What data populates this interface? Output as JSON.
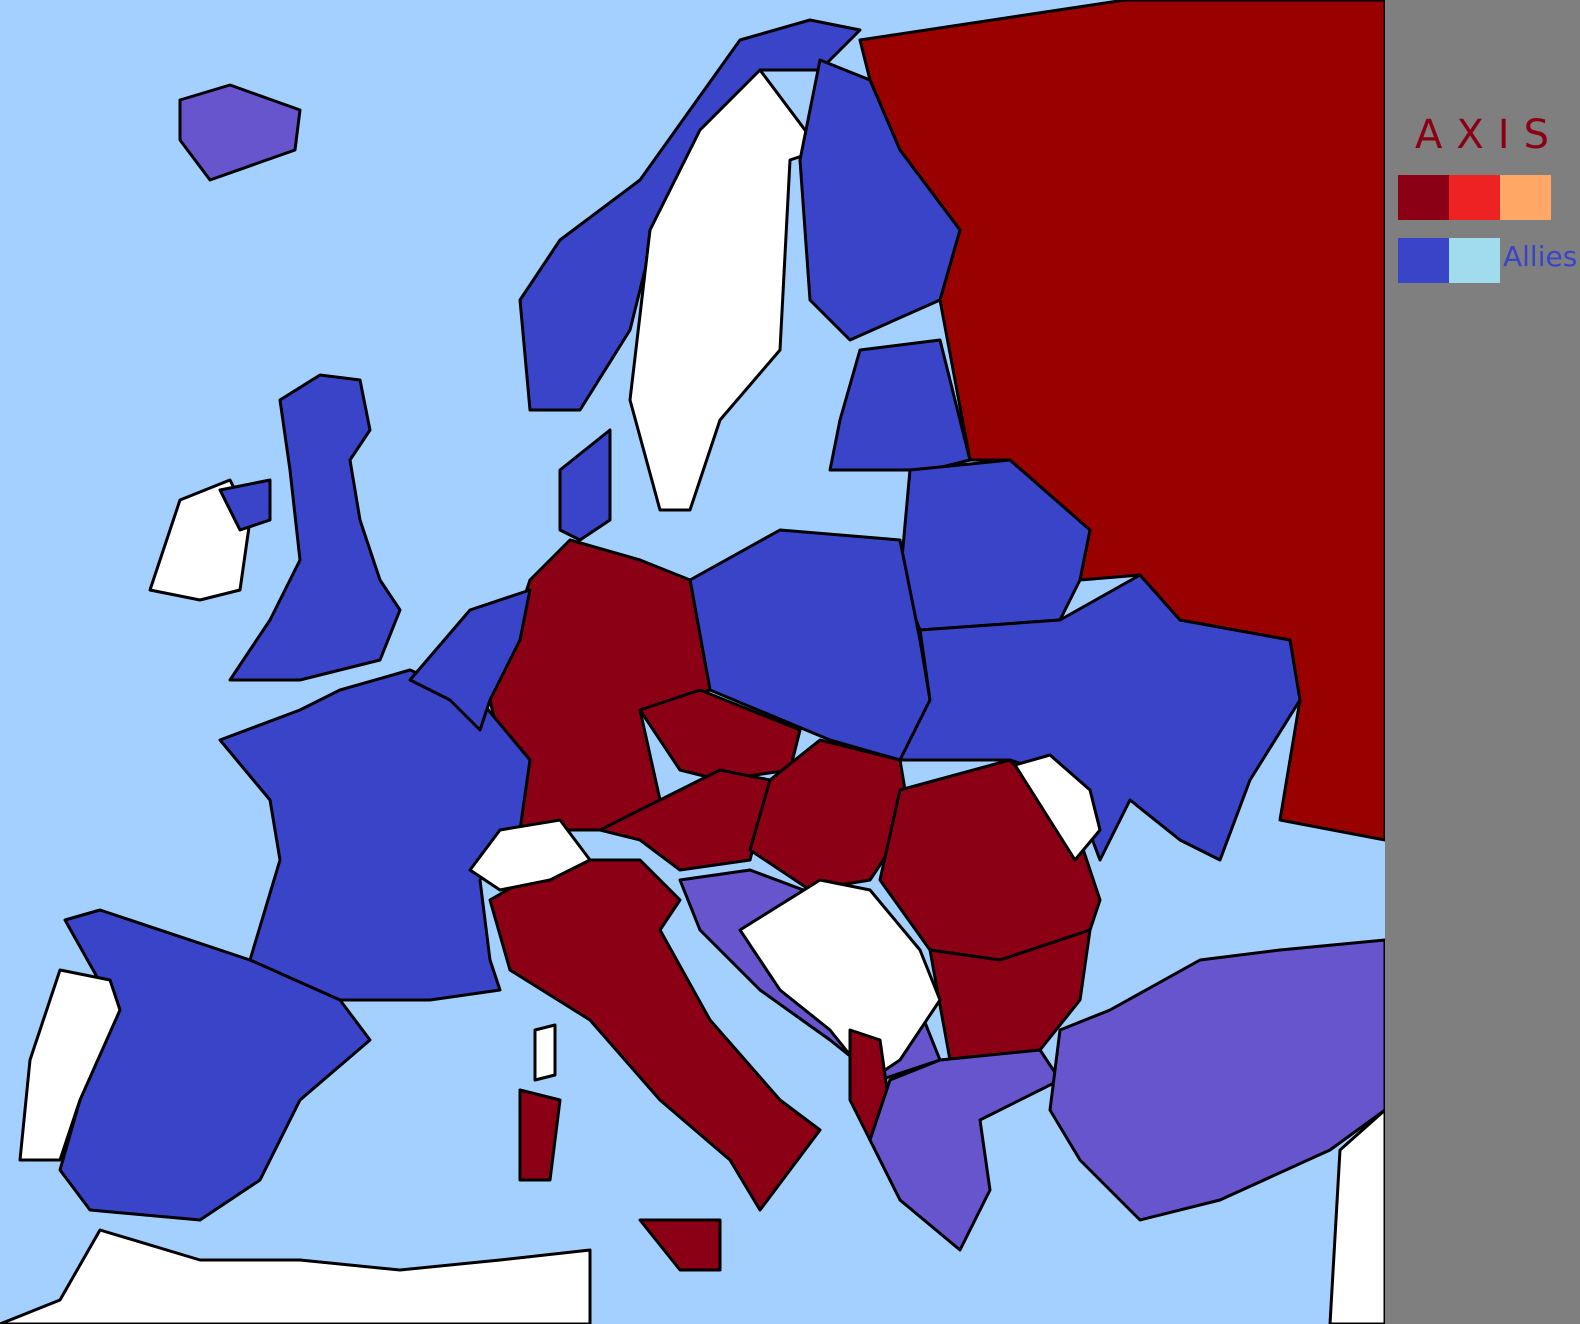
{
  "legend": {
    "axis_label": "AXIS",
    "allies_label": "Allies",
    "axis_colors": [
      "#8b0014",
      "#ee2222",
      "#ffa866"
    ],
    "allies_colors": [
      "#3a44c8",
      "#a0dcee"
    ]
  },
  "colors": {
    "sea": "#a3d0ff",
    "allies_major": "#3a44c8",
    "allies_minor": "#6655cc",
    "axis_major": "#8b0014",
    "ussr": "#990000",
    "neutral": "#ffffff",
    "panel": "#7f7f7f"
  }
}
